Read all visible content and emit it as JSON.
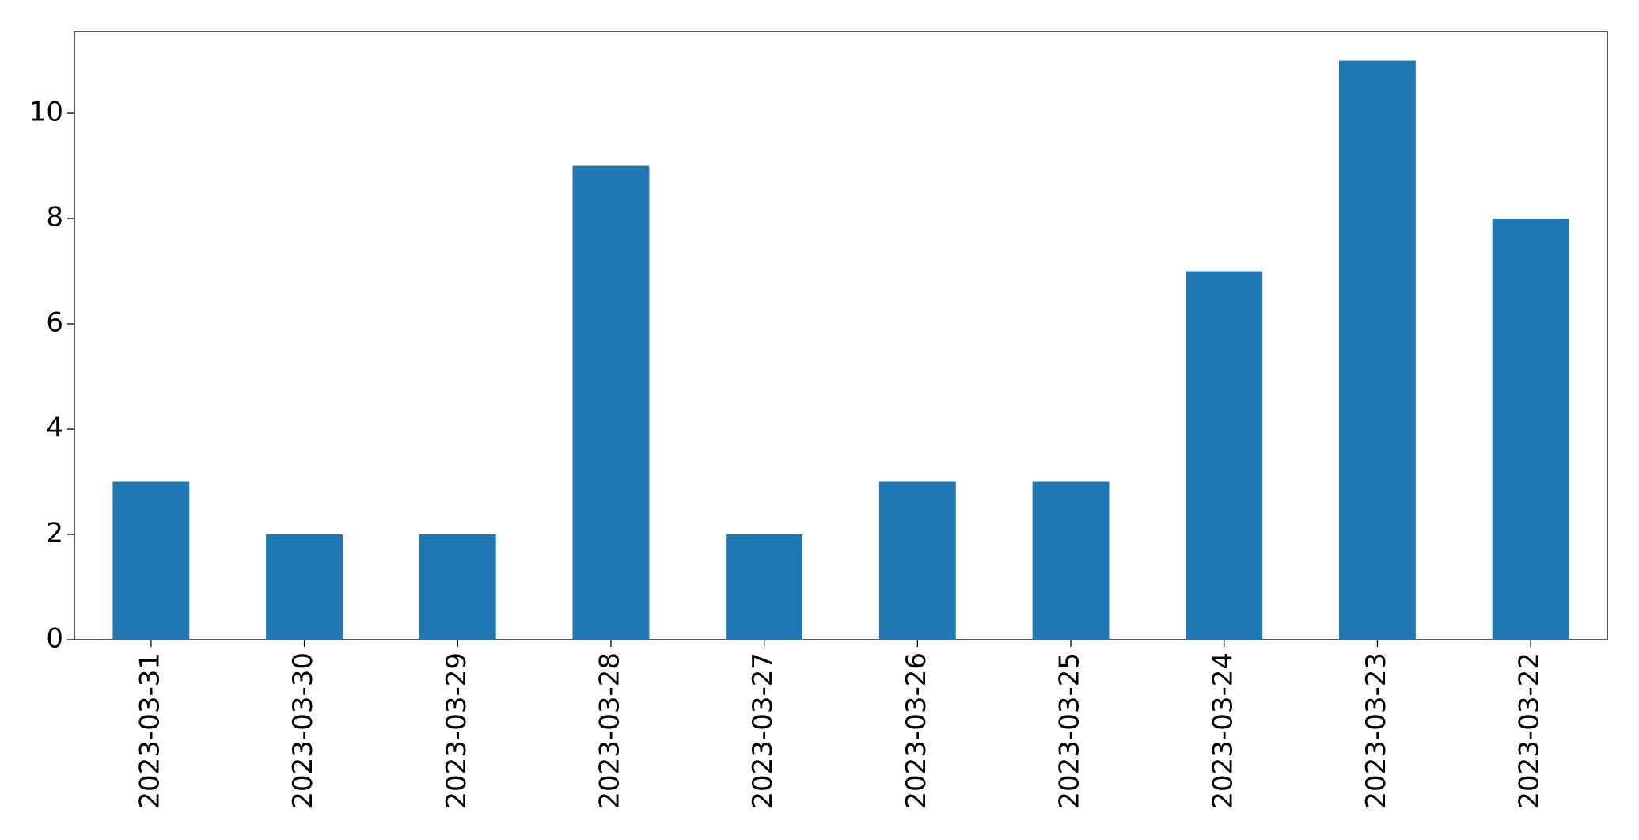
{
  "chart_data": {
    "type": "bar",
    "categories": [
      "2023-03-31",
      "2023-03-30",
      "2023-03-29",
      "2023-03-28",
      "2023-03-27",
      "2023-03-26",
      "2023-03-25",
      "2023-03-24",
      "2023-03-23",
      "2023-03-22"
    ],
    "values": [
      3,
      2,
      2,
      9,
      2,
      3,
      3,
      7,
      11,
      8
    ],
    "color": "#1f77b4",
    "ylim": [
      0,
      11.55
    ],
    "yticks": [
      0,
      2,
      4,
      6,
      8,
      10
    ],
    "grid": false
  }
}
